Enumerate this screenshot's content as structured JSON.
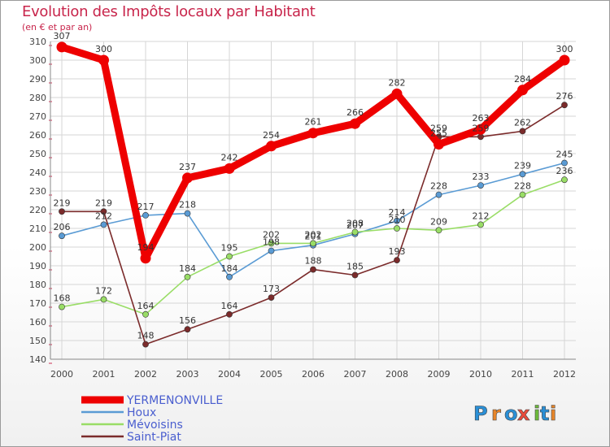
{
  "chart_data": {
    "type": "line",
    "title": "Evolution des Impôts locaux par Habitant",
    "subtitle": "(en € et par an)",
    "x": [
      "2000",
      "2001",
      "2002",
      "2003",
      "2004",
      "2005",
      "2006",
      "2007",
      "2008",
      "2009",
      "2010",
      "2011",
      "2012"
    ],
    "ylim": [
      140,
      310
    ],
    "yticks": [
      140,
      150,
      160,
      170,
      180,
      190,
      200,
      210,
      220,
      230,
      240,
      250,
      260,
      270,
      280,
      290,
      300,
      310
    ],
    "grid": true,
    "legend_position": "bottom-left",
    "series": [
      {
        "name": "YERMENONVILLE",
        "color": "#ee0000",
        "emphasis": true,
        "values": [
          307,
          300,
          194,
          237,
          242,
          254,
          261,
          266,
          282,
          255,
          263,
          284,
          300
        ]
      },
      {
        "name": "Houx",
        "color": "#5a9bd4",
        "values": [
          206,
          212,
          217,
          218,
          184,
          198,
          201,
          207,
          214,
          228,
          233,
          239,
          245
        ]
      },
      {
        "name": "Mévoisins",
        "color": "#99dd66",
        "values": [
          168,
          172,
          164,
          184,
          195,
          202,
          202,
          208,
          210,
          209,
          212,
          228,
          236
        ]
      },
      {
        "name": "Saint-Piat",
        "color": "#7b2b2b",
        "values": [
          219,
          219,
          148,
          156,
          164,
          173,
          188,
          185,
          193,
          259,
          259,
          262,
          276
        ]
      }
    ]
  },
  "colors": {
    "title": "#c8254b",
    "axis": "#444444",
    "grid": "#d6d6d6",
    "legend_text": "#4a5ecf"
  },
  "watermark": "Proxiti"
}
